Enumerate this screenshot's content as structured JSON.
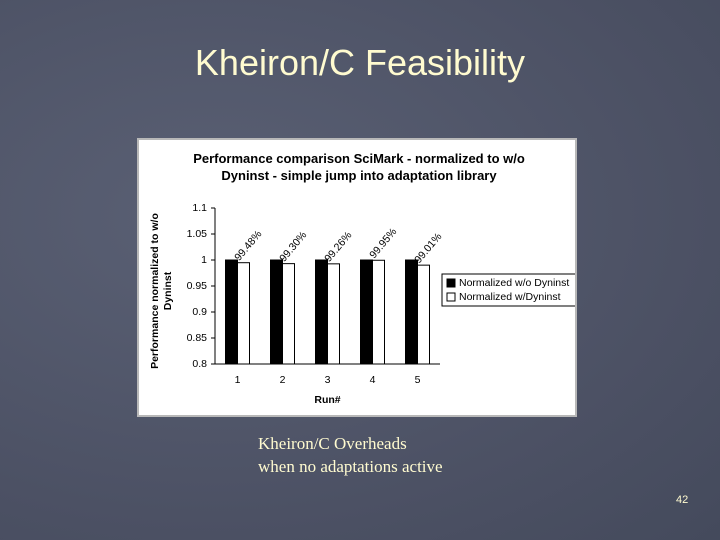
{
  "slide": {
    "title": "Kheiron/C Feasibility",
    "caption": [
      "Kheiron/C Overheads",
      "when no adaptations active"
    ],
    "page_number": "42"
  },
  "chart_data": {
    "type": "bar",
    "title": "Performance comparison SciMark - normalized to w/o Dyninst - simple jump into adaptation library",
    "x_label": "Run#",
    "y_label": "Performance normalized to w/o Dyninst",
    "categories": [
      "1",
      "2",
      "3",
      "4",
      "5"
    ],
    "series": [
      {
        "name": "Normalized w/o Dyninst",
        "color": "#000000",
        "values": [
          1,
          1,
          1,
          1,
          1
        ]
      },
      {
        "name": "Normalized w/Dyninst",
        "color": "#ffffff",
        "values": [
          0.9948,
          0.993,
          0.9926,
          0.9995,
          0.9901
        ],
        "value_labels": [
          "99.48%",
          "99.30%",
          "99.26%",
          "99.95%",
          "99.01%"
        ]
      }
    ],
    "ylim": [
      0.8,
      1.1
    ],
    "yticks": [
      0.8,
      0.85,
      0.9,
      0.95,
      1,
      1.05,
      1.1
    ],
    "grid": false,
    "legend": "right"
  }
}
